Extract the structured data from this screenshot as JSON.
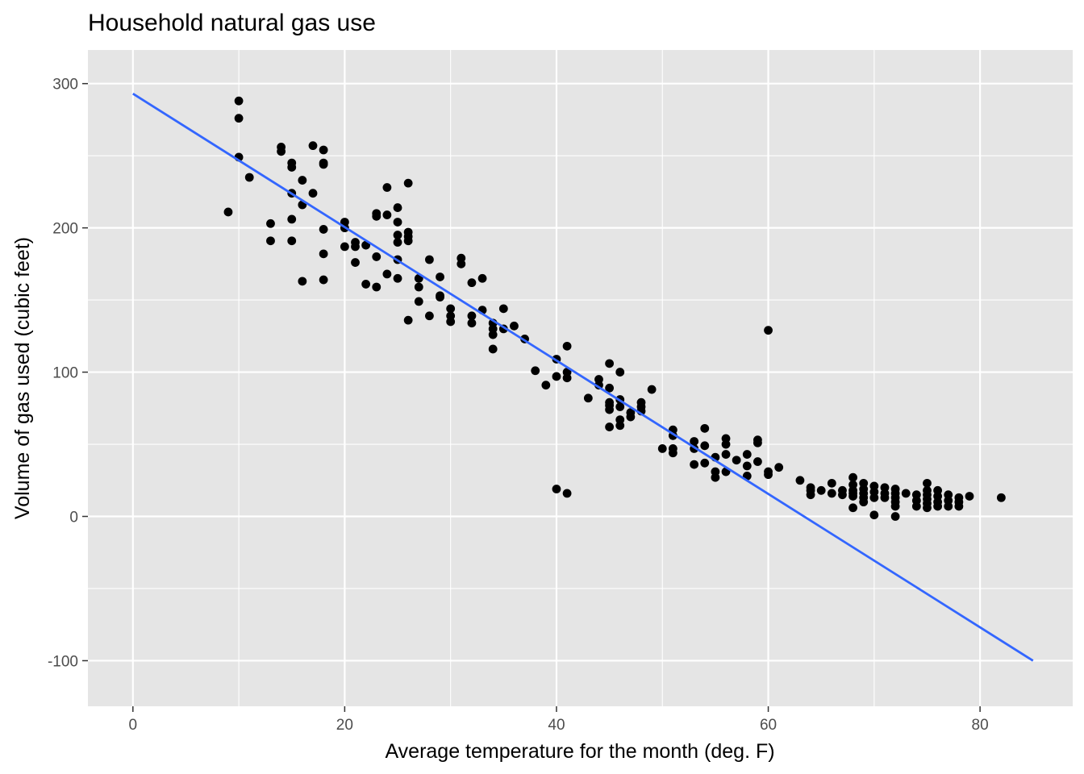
{
  "chart_data": {
    "type": "scatter",
    "title": "Household natural gas use",
    "xlabel": "Average temperature for the month (deg. F)",
    "ylabel": "Volume of gas used (cubic feet)",
    "xlim": [
      -4.25,
      88.75
    ],
    "ylim": [
      -131.6,
      323.3
    ],
    "x_ticks": [
      0,
      20,
      40,
      60,
      80
    ],
    "x_tick_labels": [
      "0",
      "20",
      "40",
      "60",
      "80"
    ],
    "y_ticks": [
      -100,
      0,
      100,
      200,
      300
    ],
    "y_tick_labels": [
      "-100",
      "0",
      "100",
      "200",
      "300"
    ],
    "grid": true,
    "legend": "none",
    "colors": {
      "panel": "#e5e5e5",
      "grid": "#ffffff",
      "points": "#000000",
      "fit_line": "#3366ff",
      "ticks": "#333333"
    },
    "fit_line": {
      "x": [
        0,
        85
      ],
      "y": [
        293,
        -100
      ]
    },
    "points": [
      [
        9,
        211
      ],
      [
        10,
        288
      ],
      [
        10,
        276
      ],
      [
        10,
        249
      ],
      [
        11,
        235
      ],
      [
        13,
        203
      ],
      [
        13,
        191
      ],
      [
        14,
        256
      ],
      [
        14,
        253
      ],
      [
        15,
        245
      ],
      [
        15,
        242
      ],
      [
        15,
        224
      ],
      [
        15,
        206
      ],
      [
        15,
        191
      ],
      [
        16,
        233
      ],
      [
        16,
        216
      ],
      [
        16,
        163
      ],
      [
        17,
        257
      ],
      [
        17,
        224
      ],
      [
        18,
        254
      ],
      [
        18,
        245
      ],
      [
        18,
        244
      ],
      [
        18,
        199
      ],
      [
        18,
        182
      ],
      [
        18,
        164
      ],
      [
        20,
        204
      ],
      [
        20,
        200
      ],
      [
        20,
        187
      ],
      [
        21,
        190
      ],
      [
        21,
        187
      ],
      [
        21,
        176
      ],
      [
        22,
        188
      ],
      [
        22,
        161
      ],
      [
        23,
        210
      ],
      [
        23,
        208
      ],
      [
        23,
        180
      ],
      [
        23,
        159
      ],
      [
        24,
        228
      ],
      [
        24,
        209
      ],
      [
        24,
        168
      ],
      [
        25,
        214
      ],
      [
        25,
        204
      ],
      [
        25,
        195
      ],
      [
        25,
        190
      ],
      [
        25,
        178
      ],
      [
        25,
        165
      ],
      [
        26,
        231
      ],
      [
        26,
        197
      ],
      [
        26,
        194
      ],
      [
        26,
        191
      ],
      [
        26,
        136
      ],
      [
        27,
        165
      ],
      [
        27,
        159
      ],
      [
        27,
        149
      ],
      [
        28,
        178
      ],
      [
        28,
        139
      ],
      [
        29,
        166
      ],
      [
        29,
        153
      ],
      [
        29,
        152
      ],
      [
        30,
        144
      ],
      [
        30,
        139
      ],
      [
        30,
        135
      ],
      [
        31,
        179
      ],
      [
        31,
        175
      ],
      [
        32,
        162
      ],
      [
        32,
        139
      ],
      [
        32,
        134
      ],
      [
        33,
        165
      ],
      [
        33,
        143
      ],
      [
        34,
        134
      ],
      [
        34,
        130
      ],
      [
        34,
        126
      ],
      [
        34,
        116
      ],
      [
        35,
        144
      ],
      [
        35,
        130
      ],
      [
        36,
        132
      ],
      [
        37,
        123
      ],
      [
        38,
        101
      ],
      [
        39,
        91
      ],
      [
        40,
        109
      ],
      [
        40,
        97
      ],
      [
        40,
        19
      ],
      [
        41,
        118
      ],
      [
        41,
        100
      ],
      [
        41,
        96
      ],
      [
        41,
        16
      ],
      [
        43,
        82
      ],
      [
        44,
        95
      ],
      [
        44,
        91
      ],
      [
        45,
        106
      ],
      [
        45,
        89
      ],
      [
        45,
        79
      ],
      [
        45,
        77
      ],
      [
        45,
        74
      ],
      [
        45,
        62
      ],
      [
        46,
        100
      ],
      [
        46,
        81
      ],
      [
        46,
        76
      ],
      [
        46,
        67
      ],
      [
        46,
        63
      ],
      [
        47,
        72
      ],
      [
        47,
        69
      ],
      [
        48,
        79
      ],
      [
        48,
        76
      ],
      [
        48,
        73
      ],
      [
        49,
        88
      ],
      [
        50,
        47
      ],
      [
        51,
        60
      ],
      [
        51,
        56
      ],
      [
        51,
        47
      ],
      [
        51,
        44
      ],
      [
        53,
        52
      ],
      [
        53,
        47
      ],
      [
        53,
        36
      ],
      [
        54,
        61
      ],
      [
        54,
        49
      ],
      [
        54,
        37
      ],
      [
        55,
        41
      ],
      [
        55,
        31
      ],
      [
        55,
        27
      ],
      [
        56,
        54
      ],
      [
        56,
        50
      ],
      [
        56,
        43
      ],
      [
        56,
        31
      ],
      [
        57,
        39
      ],
      [
        58,
        43
      ],
      [
        58,
        35
      ],
      [
        58,
        28
      ],
      [
        59,
        53
      ],
      [
        59,
        51
      ],
      [
        59,
        38
      ],
      [
        60,
        129
      ],
      [
        60,
        31
      ],
      [
        60,
        29
      ],
      [
        61,
        34
      ],
      [
        63,
        25
      ],
      [
        64,
        20
      ],
      [
        64,
        18
      ],
      [
        64,
        15
      ],
      [
        65,
        18
      ],
      [
        66,
        23
      ],
      [
        66,
        16
      ],
      [
        67,
        18
      ],
      [
        67,
        15
      ],
      [
        68,
        27
      ],
      [
        68,
        22
      ],
      [
        68,
        18
      ],
      [
        68,
        16
      ],
      [
        68,
        14
      ],
      [
        68,
        6
      ],
      [
        69,
        23
      ],
      [
        69,
        19
      ],
      [
        69,
        16
      ],
      [
        69,
        13
      ],
      [
        69,
        10
      ],
      [
        70,
        21
      ],
      [
        70,
        17
      ],
      [
        70,
        13
      ],
      [
        70,
        1
      ],
      [
        71,
        20
      ],
      [
        71,
        16
      ],
      [
        71,
        13
      ],
      [
        72,
        19
      ],
      [
        72,
        16
      ],
      [
        72,
        13
      ],
      [
        72,
        10
      ],
      [
        72,
        7
      ],
      [
        72,
        0
      ],
      [
        73,
        16
      ],
      [
        74,
        15
      ],
      [
        74,
        11
      ],
      [
        74,
        7
      ],
      [
        75,
        23
      ],
      [
        75,
        18
      ],
      [
        75,
        15
      ],
      [
        75,
        12
      ],
      [
        75,
        9
      ],
      [
        75,
        6
      ],
      [
        76,
        18
      ],
      [
        76,
        14
      ],
      [
        76,
        10
      ],
      [
        76,
        7
      ],
      [
        77,
        15
      ],
      [
        77,
        11
      ],
      [
        77,
        7
      ],
      [
        78,
        13
      ],
      [
        78,
        10
      ],
      [
        78,
        7
      ],
      [
        79,
        14
      ],
      [
        82,
        13
      ]
    ]
  }
}
